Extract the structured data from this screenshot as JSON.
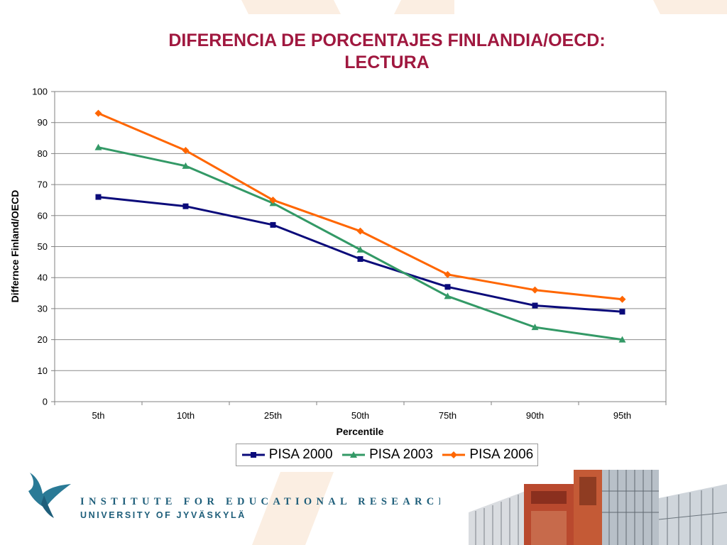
{
  "slide": {
    "title_line1": "DIFERENCIA DE PORCENTAJES FINLANDIA/OECD:",
    "title_line2": "LECTURA",
    "title_color": "#a0183f"
  },
  "chart_data": {
    "type": "line",
    "categories": [
      "5th",
      "10th",
      "25th",
      "50th",
      "75th",
      "90th",
      "95th"
    ],
    "series": [
      {
        "name": "PISA 2000",
        "values": [
          66,
          63,
          57,
          46,
          37,
          31,
          29
        ],
        "color": "#0a0a7a",
        "marker": "square"
      },
      {
        "name": "PISA 2003",
        "values": [
          82,
          76,
          64,
          49,
          34,
          24,
          20
        ],
        "color": "#339966",
        "marker": "triangle"
      },
      {
        "name": "PISA 2006",
        "values": [
          93,
          81,
          65,
          55,
          41,
          36,
          33
        ],
        "color": "#ff6600",
        "marker": "diamond"
      }
    ],
    "xlabel": "Percentile",
    "ylabel": "Differnce Finland/OECD",
    "ylim": [
      0,
      100
    ],
    "yticks": [
      0,
      10,
      20,
      30,
      40,
      50,
      60,
      70,
      80,
      90,
      100
    ],
    "grid": true,
    "legend_position": "bottom"
  },
  "footer": {
    "institute": "INSTITUTE FOR EDUCATIONAL RESEARCH",
    "university": "UNIVERSITY OF JYVÄSKYLÄ",
    "brand_color": "#1e5e7a",
    "logo_icon": "institute-logo-icon",
    "photo_icon": "building-photo"
  }
}
